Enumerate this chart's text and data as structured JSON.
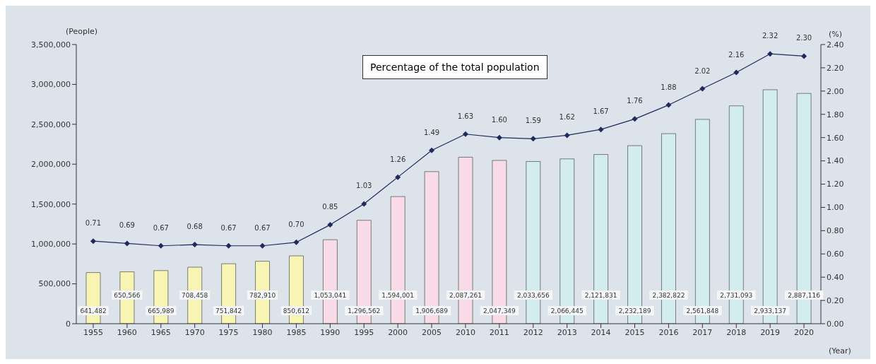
{
  "chart_data": {
    "type": "bar",
    "ylabel": "(People)",
    "y2label": "(%)",
    "xlabel": "(Year)",
    "annotations": [
      "Percentage of the total population"
    ],
    "categories": [
      "1955",
      "1960",
      "1965",
      "1970",
      "1975",
      "1980",
      "1985",
      "1990",
      "1995",
      "2000",
      "2005",
      "2010",
      "2011",
      "2012",
      "2013",
      "2014",
      "2015",
      "2016",
      "2017",
      "2018",
      "2019",
      "2020"
    ],
    "series": [
      {
        "values": [
          641482,
          650566,
          665989,
          708458,
          751842,
          782910,
          850612,
          1053041,
          1296562,
          1594001,
          1906689,
          2087261,
          2047349,
          2033656,
          2066445,
          2121831,
          2232189,
          2382822,
          2561848,
          2731093,
          2933137,
          2887116
        ],
        "colors": [
          "#f8f4b4",
          "#f8f4b4",
          "#f8f4b4",
          "#f8f4b4",
          "#f8f4b4",
          "#f8f4b4",
          "#f8f4b4",
          "#f8dbe6",
          "#f8dbe6",
          "#f8dbe6",
          "#f8dbe6",
          "#f8dbe6",
          "#f8dbe6",
          "#d2ecef",
          "#d2ecef",
          "#d2ecef",
          "#d2ecef",
          "#d2ecef",
          "#d2ecef",
          "#d2ecef",
          "#d2ecef",
          "#d2ecef"
        ],
        "value_labels": [
          "641,482",
          "650,566",
          "665,989",
          "708,458",
          "751,842",
          "782,910",
          "850,612",
          "1,053,041",
          "1,296,562",
          "1,594,001",
          "1,906,689",
          "2,087,261",
          "2,047,349",
          "2,033,656",
          "2,066,445",
          "2,121,831",
          "2,232,189",
          "2,382,822",
          "2,561,848",
          "2,731,093",
          "2,933,137",
          "2,887,116"
        ]
      },
      {
        "type": "line",
        "axis": "y2",
        "color": "#1f2a5e",
        "values": [
          0.71,
          0.69,
          0.67,
          0.68,
          0.67,
          0.67,
          0.7,
          0.85,
          1.03,
          1.26,
          1.49,
          1.63,
          1.6,
          1.59,
          1.62,
          1.67,
          1.76,
          1.88,
          2.02,
          2.16,
          2.32,
          2.3
        ],
        "value_labels": [
          "0.71",
          "0.69",
          "0.67",
          "0.68",
          "0.67",
          "0.67",
          "0.70",
          "0.85",
          "1.03",
          "1.26",
          "1.49",
          "1.63",
          "1.60",
          "1.59",
          "1.62",
          "1.67",
          "1.76",
          "1.88",
          "2.02",
          "2.16",
          "2.32",
          "2.30"
        ]
      }
    ],
    "marker": "diamond",
    "line_style": "solid",
    "ylim": [
      0,
      3500000
    ],
    "yticks": [
      {
        "value": 0,
        "label": "0"
      },
      {
        "value": 500000,
        "label": "500,000"
      },
      {
        "value": 1000000,
        "label": "1,000,000"
      },
      {
        "value": 1500000,
        "label": "1,500,000"
      },
      {
        "value": 2000000,
        "label": "2,000,000"
      },
      {
        "value": 2500000,
        "label": "2,500,000"
      },
      {
        "value": 3000000,
        "label": "3,000,000"
      },
      {
        "value": 3500000,
        "label": "3,500,000"
      }
    ],
    "y2lim": [
      0,
      2.4
    ],
    "y2ticks": [
      {
        "value": 0,
        "label": "0.00"
      },
      {
        "value": 0.2,
        "label": "0.20"
      },
      {
        "value": 0.4,
        "label": "0.40"
      },
      {
        "value": 0.6,
        "label": "0.60"
      },
      {
        "value": 0.8,
        "label": "0.80"
      },
      {
        "value": 1,
        "label": "1.00"
      },
      {
        "value": 1.2,
        "label": "1.20"
      },
      {
        "value": 1.4,
        "label": "1.40"
      },
      {
        "value": 1.6,
        "label": "1.60"
      },
      {
        "value": 1.8,
        "label": "1.80"
      },
      {
        "value": 2,
        "label": "2.00"
      },
      {
        "value": 2.2,
        "label": "2.20"
      },
      {
        "value": 2.4,
        "label": "2.40"
      }
    ]
  }
}
